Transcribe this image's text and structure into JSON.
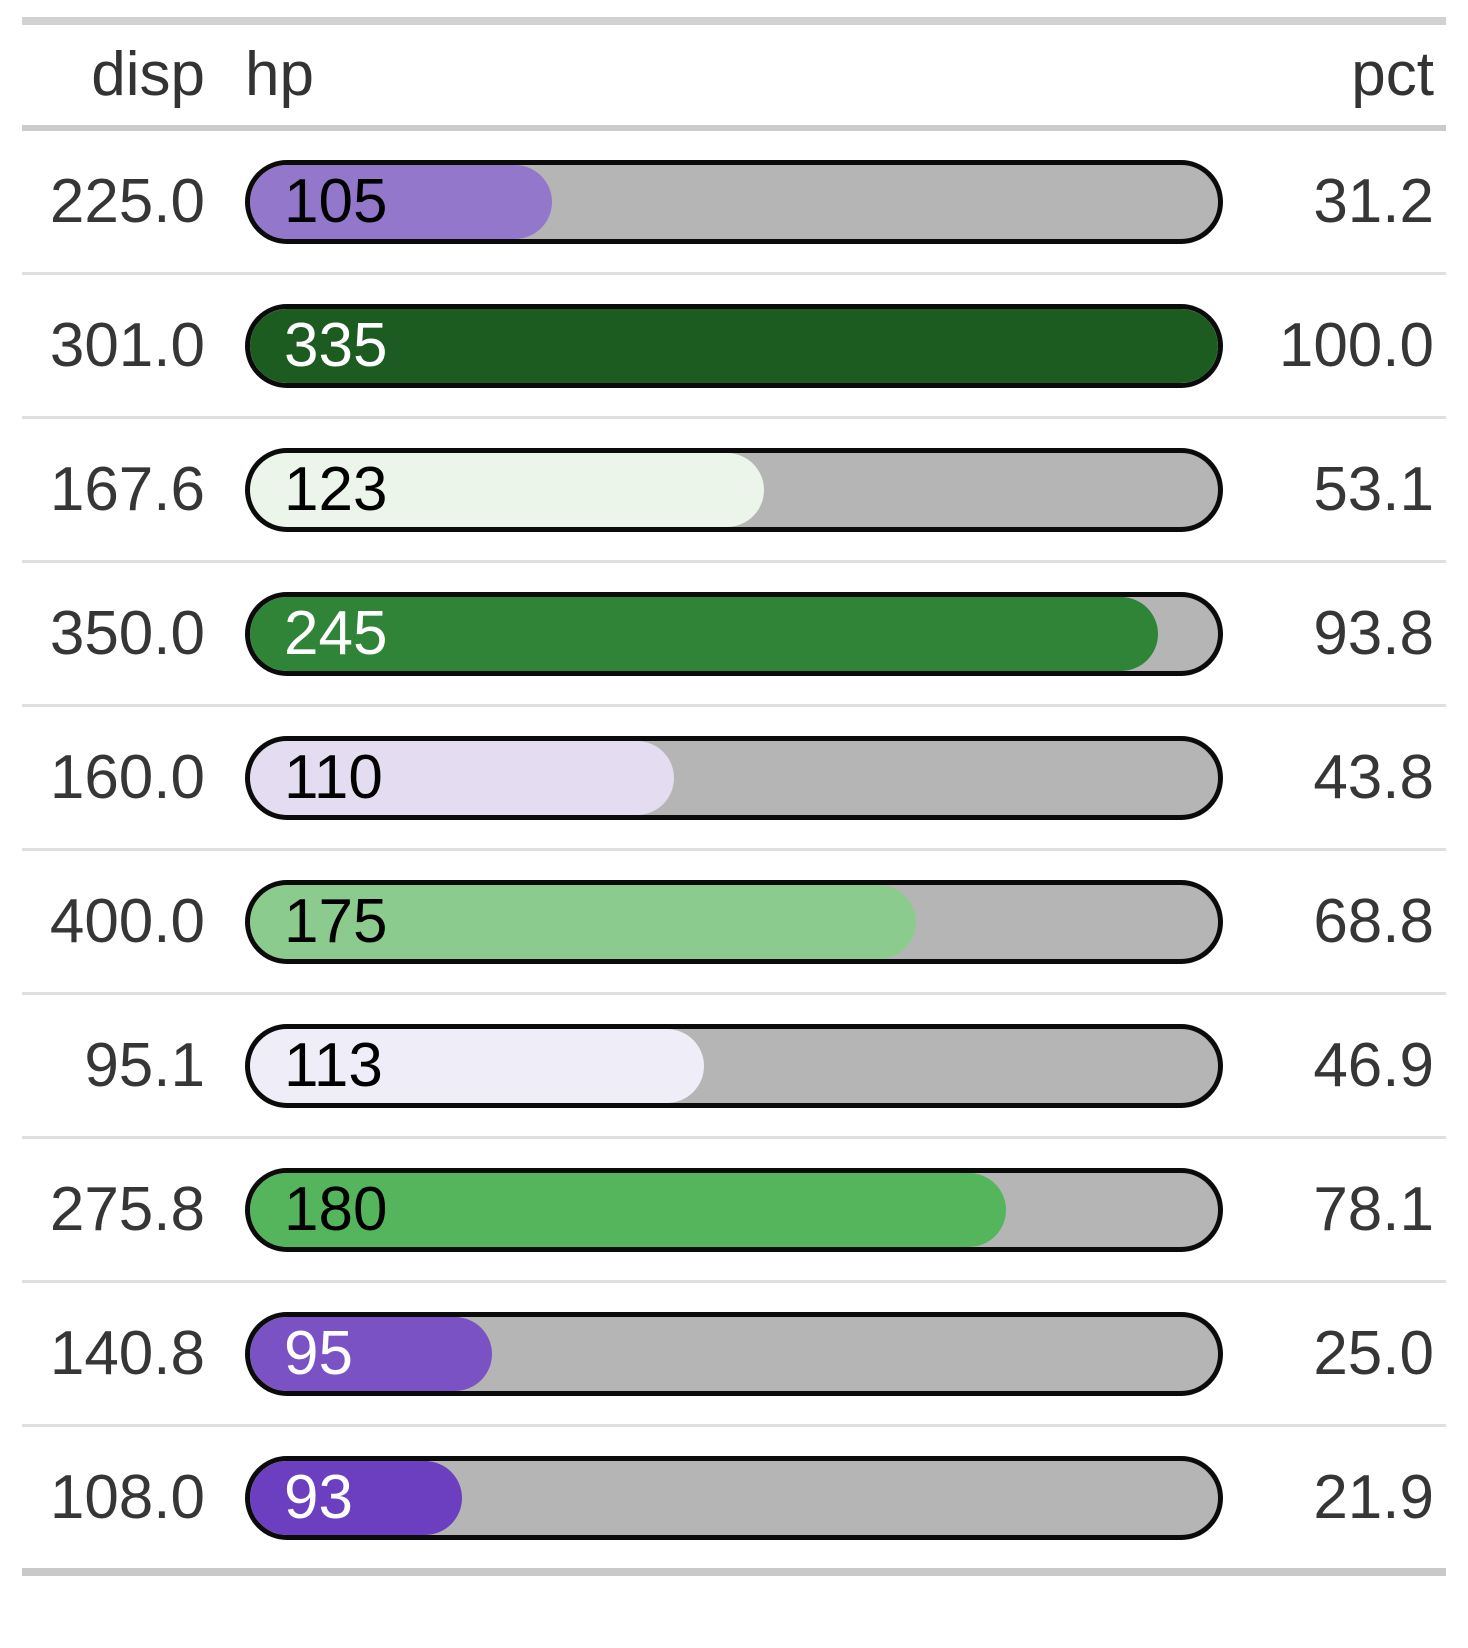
{
  "table": {
    "header": {
      "disp": "disp",
      "hp": "hp",
      "pct": "pct"
    },
    "colors": {
      "track": "#b5b5b5",
      "bar_border": "#0b0b0b",
      "header_text": "#333333",
      "body_text": "#363636",
      "rule_top": "#d2d2d2",
      "rule_header": "#cbcbcb",
      "row_separator": "#dfdfdf",
      "rule_bottom": "#c9c9c9"
    },
    "rows": [
      {
        "disp": "225.0",
        "hp": "105",
        "pct": "31.2",
        "pct_value": 31.2,
        "fill_color": "#9377cb",
        "label_color": "#000000"
      },
      {
        "disp": "301.0",
        "hp": "335",
        "pct": "100.0",
        "pct_value": 100.0,
        "fill_color": "#1d5c21",
        "label_color": "#ffffff"
      },
      {
        "disp": "167.6",
        "hp": "123",
        "pct": "53.1",
        "pct_value": 53.1,
        "fill_color": "#ebf5ea",
        "label_color": "#000000"
      },
      {
        "disp": "350.0",
        "hp": "245",
        "pct": "93.8",
        "pct_value": 93.8,
        "fill_color": "#2f8438",
        "label_color": "#ffffff"
      },
      {
        "disp": "160.0",
        "hp": "110",
        "pct": "43.8",
        "pct_value": 43.8,
        "fill_color": "#e4ddf1",
        "label_color": "#000000"
      },
      {
        "disp": "400.0",
        "hp": "175",
        "pct": "68.8",
        "pct_value": 68.8,
        "fill_color": "#8bcb8e",
        "label_color": "#000000"
      },
      {
        "disp": "95.1",
        "hp": "113",
        "pct": "46.9",
        "pct_value": 46.9,
        "fill_color": "#efedf8",
        "label_color": "#000000"
      },
      {
        "disp": "275.8",
        "hp": "180",
        "pct": "78.1",
        "pct_value": 78.1,
        "fill_color": "#55b55c",
        "label_color": "#000000"
      },
      {
        "disp": "140.8",
        "hp": "95",
        "pct": "25.0",
        "pct_value": 25.0,
        "fill_color": "#7b52c4",
        "label_color": "#ffffff"
      },
      {
        "disp": "108.0",
        "hp": "93",
        "pct": "21.9",
        "pct_value": 21.9,
        "fill_color": "#6c3ec0",
        "label_color": "#ffffff"
      }
    ]
  },
  "chart_data": {
    "type": "table",
    "columns": [
      "disp",
      "hp",
      "pct"
    ],
    "rows": [
      [
        225.0,
        105,
        31.2
      ],
      [
        301.0,
        335,
        100.0
      ],
      [
        167.6,
        123,
        53.1
      ],
      [
        350.0,
        245,
        93.8
      ],
      [
        160.0,
        110,
        43.8
      ],
      [
        400.0,
        175,
        68.8
      ],
      [
        95.1,
        113,
        46.9
      ],
      [
        275.8,
        180,
        78.1
      ],
      [
        140.8,
        95,
        25.0
      ],
      [
        108.0,
        93,
        21.9
      ]
    ],
    "bar_column": "hp",
    "bar_fill_percent_column": "pct",
    "bar_range": [
      0,
      335
    ],
    "palette": "purple-green diverging (low hp = purple, high hp = green)",
    "legend_position": "none",
    "grid": false
  }
}
